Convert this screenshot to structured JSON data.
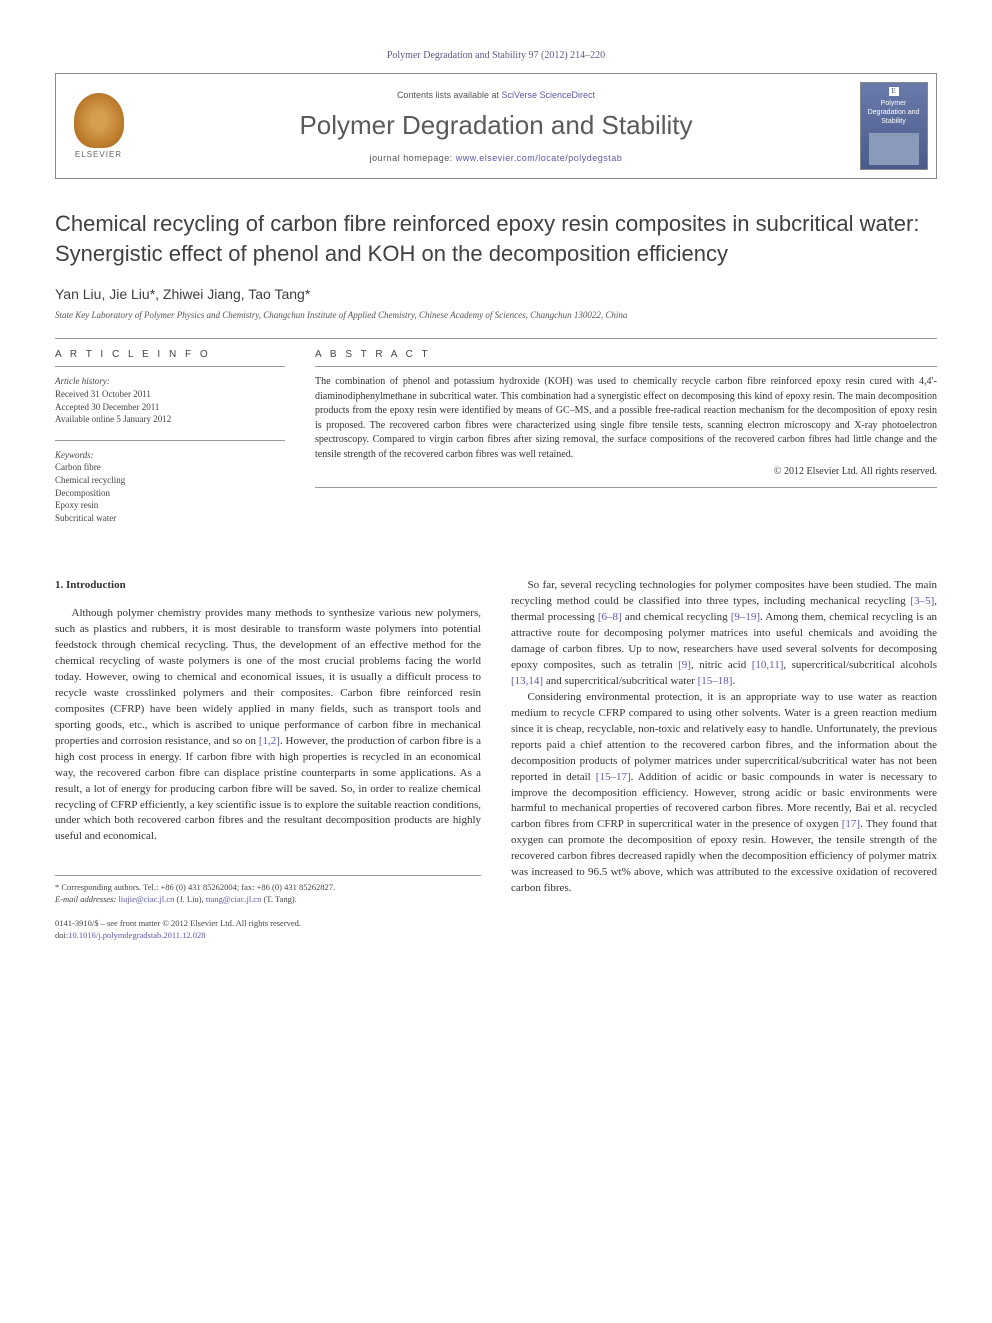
{
  "citation": "Polymer Degradation and Stability 97 (2012) 214–220",
  "masthead": {
    "publisher": "ELSEVIER",
    "contents_prefix": "Contents lists available at ",
    "contents_link": "SciVerse ScienceDirect",
    "journal": "Polymer Degradation and Stability",
    "homepage_prefix": "journal homepage: ",
    "homepage_url": "www.elsevier.com/locate/polydegstab",
    "cover_title": "Polymer Degradation and Stability"
  },
  "title": "Chemical recycling of carbon fibre reinforced epoxy resin composites in subcritical water: Synergistic effect of phenol and KOH on the decomposition efficiency",
  "authors_html": "Yan Liu, Jie Liu*, Zhiwei Jiang, Tao Tang*",
  "affiliation": "State Key Laboratory of Polymer Physics and Chemistry, Changchun Institute of Applied Chemistry, Chinese Academy of Sciences, Changchun 130022, China",
  "article_info": {
    "head": "A R T I C L E   I N F O",
    "history_label": "Article history:",
    "received": "Received 31 October 2011",
    "accepted": "Accepted 30 December 2011",
    "online": "Available online 5 January 2012",
    "keywords_label": "Keywords:",
    "keywords": [
      "Carbon fibre",
      "Chemical recycling",
      "Decomposition",
      "Epoxy resin",
      "Subcritical water"
    ]
  },
  "abstract": {
    "head": "A B S T R A C T",
    "text": "The combination of phenol and potassium hydroxide (KOH) was used to chemically recycle carbon fibre reinforced epoxy resin cured with 4,4′-diaminodiphenylmethane in subcritical water. This combination had a synergistic effect on decomposing this kind of epoxy resin. The main decomposition products from the epoxy resin were identified by means of GC–MS, and a possible free-radical reaction mechanism for the decomposition of epoxy resin is proposed. The recovered carbon fibres were characterized using single fibre tensile tests, scanning electron microscopy and X-ray photoelectron spectroscopy. Compared to virgin carbon fibres after sizing removal, the surface compositions of the recovered carbon fibres had little change and the tensile strength of the recovered carbon fibres was well retained.",
    "copyright": "© 2012 Elsevier Ltd. All rights reserved."
  },
  "sections": {
    "intro_head": "1. Introduction",
    "col1_p1": "Although polymer chemistry provides many methods to synthesize various new polymers, such as plastics and rubbers, it is most desirable to transform waste polymers into potential feedstock through chemical recycling. Thus, the development of an effective method for the chemical recycling of waste polymers is one of the most crucial problems facing the world today. However, owing to chemical and economical issues, it is usually a difficult process to recycle waste crosslinked polymers and their composites. Carbon fibre reinforced resin composites (CFRP) have been widely applied in many fields, such as transport tools and sporting goods, etc., which is ascribed to unique performance of carbon fibre in mechanical properties and corrosion resistance, and so on [1,2]. However, the production of carbon fibre is a high cost process in energy. If carbon fibre with high properties is recycled in an economical way, the recovered carbon fibre can displace pristine counterparts in some applications. As a result, a lot of energy for producing carbon fibre will be saved. So, in order to realize chemical recycling of CFRP efficiently, a key scientific issue is to explore the suitable reaction conditions, under which both recovered carbon fibres and the resultant decomposition products are highly useful and economical.",
    "col2_p1": "So far, several recycling technologies for polymer composites have been studied. The main recycling method could be classified into three types, including mechanical recycling [3–5], thermal processing [6–8] and chemical recycling [9–19]. Among them, chemical recycling is an attractive route for decomposing polymer matrices into useful chemicals and avoiding the damage of carbon fibres. Up to now, researchers have used several solvents for decomposing epoxy composites, such as tetralin [9], nitric acid [10,11], supercritical/subcritical alcohols [13,14] and supercritical/subcritical water [15–18].",
    "col2_p2": "Considering environmental protection, it is an appropriate way to use water as reaction medium to recycle CFRP compared to using other solvents. Water is a green reaction medium since it is cheap, recyclable, non-toxic and relatively easy to handle. Unfortunately, the previous reports paid a chief attention to the recovered carbon fibres, and the information about the decomposition products of polymer matrices under supercritical/subcritical water has not been reported in detail [15–17]. Addition of acidic or basic compounds in water is necessary to improve the decomposition efficiency. However, strong acidic or basic environments were harmful to mechanical properties of recovered carbon fibres. More recently, Bai et al. recycled carbon fibres from CFRP in supercritical water in the presence of oxygen [17]. They found that oxygen can promote the decomposition of epoxy resin. However, the tensile strength of the recovered carbon fibres decreased rapidly when the decomposition efficiency of polymer matrix was increased to 96.5 wt% above, which was attributed to the excessive oxidation of recovered carbon fibres."
  },
  "footnotes": {
    "corr": "* Corresponding authors. Tel.: +86 (0) 431 85262004; fax: +86 (0) 431 85262827.",
    "email_label": "E-mail addresses: ",
    "email1": "liujie@ciac.jl.cn",
    "email1_name": " (J. Liu), ",
    "email2": "ttang@ciac.jl.cn",
    "email2_name": " (T. Tang)."
  },
  "footer": {
    "issn_line": "0141-3910/$ – see front matter © 2012 Elsevier Ltd. All rights reserved.",
    "doi_label": "doi:",
    "doi": "10.1016/j.polymdegradstab.2011.12.028"
  },
  "colors": {
    "link": "#5a5aaa",
    "text": "#333333",
    "rule": "#999999",
    "masthead_border": "#8a8a8a"
  }
}
